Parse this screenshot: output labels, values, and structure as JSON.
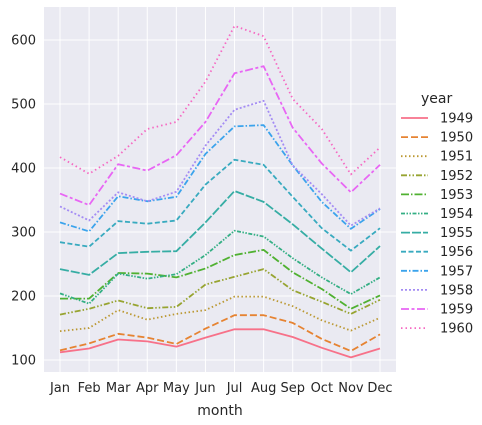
{
  "chart_data": {
    "type": "line",
    "xlabel": "month",
    "ylabel": "",
    "categories": [
      "Jan",
      "Feb",
      "Mar",
      "Apr",
      "May",
      "Jun",
      "Jul",
      "Aug",
      "Sep",
      "Oct",
      "Nov",
      "Dec"
    ],
    "ylim": [
      80,
      650
    ],
    "yticks": [
      100,
      200,
      300,
      400,
      500,
      600
    ],
    "grid": true,
    "background_color": "#EAEAF2",
    "legend": {
      "title": "year",
      "placement": "right"
    },
    "series": [
      {
        "name": "1949",
        "color": "#f77189",
        "dash": "solid",
        "values": [
          112,
          118,
          132,
          129,
          121,
          135,
          148,
          148,
          136,
          119,
          104,
          118
        ]
      },
      {
        "name": "1950",
        "color": "#e68332",
        "dash": "dashed",
        "values": [
          115,
          126,
          141,
          135,
          125,
          149,
          170,
          170,
          158,
          133,
          114,
          140
        ]
      },
      {
        "name": "1951",
        "color": "#bb9832",
        "dash": "dotted",
        "values": [
          145,
          150,
          178,
          163,
          172,
          178,
          199,
          199,
          184,
          162,
          146,
          166
        ]
      },
      {
        "name": "1952",
        "color": "#97a431",
        "dash": "dashdotdot",
        "values": [
          171,
          180,
          193,
          181,
          183,
          218,
          230,
          242,
          209,
          191,
          172,
          194
        ]
      },
      {
        "name": "1953",
        "color": "#50b131",
        "dash": "dashdot",
        "values": [
          196,
          196,
          236,
          235,
          229,
          243,
          264,
          272,
          237,
          211,
          180,
          201
        ]
      },
      {
        "name": "1954",
        "color": "#34af84",
        "dash": "dashdotdot2",
        "values": [
          204,
          188,
          235,
          227,
          234,
          264,
          302,
          293,
          259,
          229,
          203,
          229
        ]
      },
      {
        "name": "1955",
        "color": "#36ada4",
        "dash": "longdash",
        "values": [
          242,
          233,
          267,
          269,
          270,
          315,
          364,
          347,
          312,
          274,
          237,
          278
        ]
      },
      {
        "name": "1956",
        "color": "#38aabf",
        "dash": "dashed2",
        "values": [
          284,
          277,
          317,
          313,
          318,
          374,
          413,
          405,
          355,
          306,
          271,
          306
        ]
      },
      {
        "name": "1957",
        "color": "#3ba3ec",
        "dash": "dashdot2",
        "values": [
          315,
          301,
          356,
          348,
          355,
          422,
          465,
          467,
          404,
          347,
          305,
          336
        ]
      },
      {
        "name": "1958",
        "color": "#a48cf4",
        "dash": "dotted2",
        "values": [
          340,
          318,
          362,
          348,
          363,
          435,
          491,
          505,
          404,
          359,
          310,
          337
        ]
      },
      {
        "name": "1959",
        "color": "#e866f4",
        "dash": "dashdot3",
        "values": [
          360,
          342,
          406,
          396,
          420,
          472,
          548,
          559,
          463,
          407,
          362,
          405
        ]
      },
      {
        "name": "1960",
        "color": "#f668c2",
        "dash": "dotted3",
        "values": [
          417,
          391,
          419,
          461,
          472,
          535,
          622,
          606,
          508,
          461,
          390,
          432
        ]
      }
    ]
  }
}
